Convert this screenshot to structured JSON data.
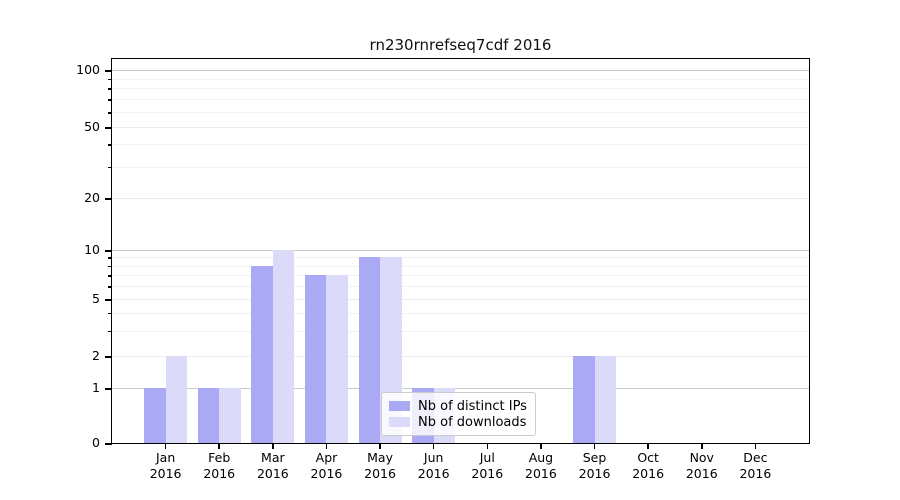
{
  "chart_data": {
    "type": "bar",
    "title": "rn230rnrefseq7cdf 2016",
    "categories": [
      "Jan",
      "Feb",
      "Mar",
      "Apr",
      "May",
      "Jun",
      "Jul",
      "Aug",
      "Sep",
      "Oct",
      "Nov",
      "Dec"
    ],
    "category_year": "2016",
    "series": [
      {
        "name": "Nb of distinct IPs",
        "color": "#a9a9f4",
        "values": [
          1,
          1,
          8,
          7,
          9,
          1,
          0,
          0,
          2,
          0,
          0,
          0
        ]
      },
      {
        "name": "Nb of downloads",
        "color": "#dbdbf9",
        "values": [
          2,
          1,
          10,
          7,
          9,
          1,
          0,
          0,
          2,
          0,
          0,
          0
        ]
      }
    ],
    "ylim": [
      0,
      100
    ],
    "yscale": "log above 1 with zero baseline",
    "yticks_labeled": [
      0,
      1,
      2,
      5,
      10,
      20,
      50,
      100
    ],
    "yticks_minor": [
      3,
      4,
      6,
      7,
      8,
      9,
      30,
      40,
      60,
      70,
      80,
      90
    ],
    "grid": {
      "horizontal": true,
      "major_color": "#c9c9c9",
      "minor_color": "#f1f1f1"
    },
    "legend": {
      "position": "lower center inside",
      "items": [
        "Nb of distinct IPs",
        "Nb of downloads"
      ]
    }
  },
  "colors": {
    "background": "#ffffff",
    "axis": "#000000",
    "text": "#000000"
  }
}
